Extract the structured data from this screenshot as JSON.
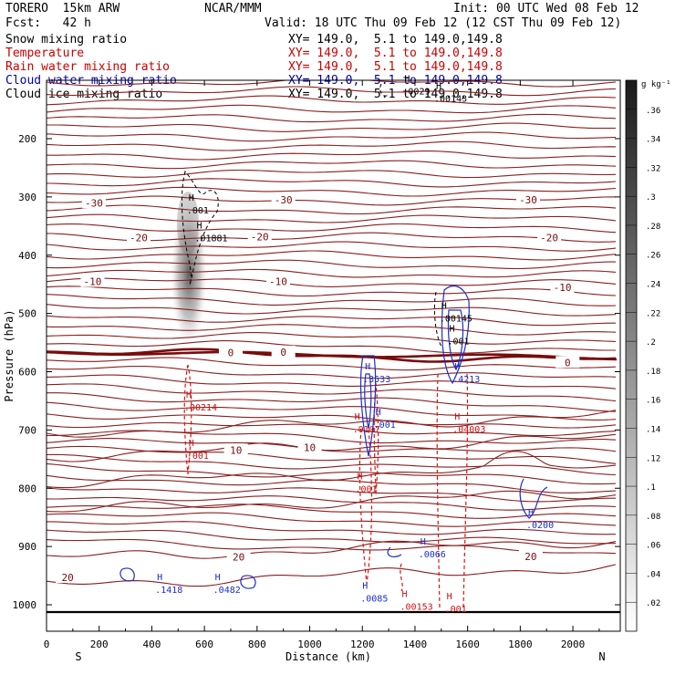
{
  "header": {
    "model": "TORERO  15km ARW",
    "org": "NCAR/MMM",
    "init": "Init: 00 UTC Wed 08 Feb 12",
    "fcst": "Fcst:   42 h",
    "valid": "Valid: 18 UTC Thu 09 Feb 12 (12 CST Thu 09 Feb 12)"
  },
  "fields": [
    {
      "label": "Snow mixing ratio",
      "xy": "XY= 149.0,  5.1 to 149.0,149.8",
      "color": "#000000"
    },
    {
      "label": "Temperature",
      "xy": "XY= 149.0,  5.1 to 149.0,149.8",
      "color": "#cc0000"
    },
    {
      "label": "Rain water mixing ratio",
      "xy": "XY= 149.0,  5.1 to 149.0,149.8",
      "color": "#cc0000"
    },
    {
      "label": "Cloud water mixing ratio",
      "xy": "XY= 149.0,  5.1 to 149.0,149.8",
      "color": "#0000aa"
    },
    {
      "label": "Cloud ice mixing ratio",
      "xy": "XY= 149.0,  5.1 to 149.0,149.8",
      "color": "#000000"
    }
  ],
  "chart_data": {
    "type": "contour",
    "xlabel": "Distance (km)",
    "ylabel": "Pressure (hPa)",
    "xlim": [
      0,
      2180
    ],
    "ylim": [
      1040,
      100
    ],
    "xticks": [
      0,
      200,
      400,
      600,
      800,
      1000,
      1200,
      1400,
      1600,
      1800,
      2000
    ],
    "yticks": [
      200,
      300,
      400,
      500,
      600,
      700,
      800,
      900,
      1000
    ],
    "end_labels": {
      "left": "S",
      "right": "N"
    },
    "colorbar": {
      "units": "g kg⁻¹",
      "ticks": [
        ".02",
        ".04",
        ".06",
        ".08",
        ".1",
        ".12",
        ".14",
        ".16",
        ".18",
        ".2",
        ".22",
        ".24",
        ".26",
        ".28",
        ".3",
        ".32",
        ".34",
        ".36"
      ]
    },
    "temperature_labels": [
      {
        "text": "-30",
        "x": 180,
        "p": 310
      },
      {
        "text": "-30",
        "x": 900,
        "p": 305
      },
      {
        "text": "-30",
        "x": 1830,
        "p": 305
      },
      {
        "text": "-20",
        "x": 350,
        "p": 370
      },
      {
        "text": "-20",
        "x": 810,
        "p": 368
      },
      {
        "text": "-20",
        "x": 1910,
        "p": 370
      },
      {
        "text": "-10",
        "x": 175,
        "p": 445
      },
      {
        "text": "-10",
        "x": 880,
        "p": 445
      },
      {
        "text": "-10",
        "x": 1960,
        "p": 455
      },
      {
        "text": "0",
        "x": 700,
        "p": 567
      },
      {
        "text": "0",
        "x": 900,
        "p": 566
      },
      {
        "text": "0",
        "x": 1980,
        "p": 584
      },
      {
        "text": "10",
        "x": 720,
        "p": 735
      },
      {
        "text": "10",
        "x": 1000,
        "p": 730
      },
      {
        "text": "20",
        "x": 80,
        "p": 953
      },
      {
        "text": "20",
        "x": 730,
        "p": 918
      },
      {
        "text": "20",
        "x": 1840,
        "p": 917
      }
    ],
    "maxima": [
      {
        "field": "snow",
        "text": ".001",
        "x": 540,
        "p": 322
      },
      {
        "field": "snow",
        "text": ".01881",
        "x": 570,
        "p": 370
      },
      {
        "field": "ice",
        "text": ".0029",
        "x": 1360,
        "p": 118
      },
      {
        "field": "ice",
        "text": ".00143",
        "x": 1480,
        "p": 130
      },
      {
        "field": "ice",
        "text": ".00145",
        "x": 1500,
        "p": 508
      },
      {
        "field": "ice",
        "text": ".001",
        "x": 1530,
        "p": 547
      },
      {
        "field": "rain",
        "text": ".00214",
        "x": 530,
        "p": 660
      },
      {
        "field": "rain",
        "text": ".001",
        "x": 540,
        "p": 743
      },
      {
        "field": "rain",
        "text": ".0107",
        "x": 1170,
        "p": 698
      },
      {
        "field": "rain",
        "text": ".04003",
        "x": 1550,
        "p": 698
      },
      {
        "field": "rain",
        "text": ".001",
        "x": 1180,
        "p": 800
      },
      {
        "field": "rain",
        "text": ".00153",
        "x": 1350,
        "p": 1002
      },
      {
        "field": "rain",
        "text": ".001",
        "x": 1520,
        "p": 1006
      },
      {
        "field": "cloud",
        "text": ".3533",
        "x": 1210,
        "p": 612
      },
      {
        "field": "cloud",
        "text": ".001",
        "x": 1250,
        "p": 690
      },
      {
        "field": "cloud",
        "text": ".4213",
        "x": 1550,
        "p": 612
      },
      {
        "field": "cloud",
        "text": ".0200",
        "x": 1830,
        "p": 862
      },
      {
        "field": "cloud",
        "text": ".0066",
        "x": 1420,
        "p": 912
      },
      {
        "field": "cloud",
        "text": ".1418",
        "x": 420,
        "p": 973
      },
      {
        "field": "cloud",
        "text": ".0482",
        "x": 640,
        "p": 973
      },
      {
        "field": "cloud",
        "text": ".0085",
        "x": 1200,
        "p": 988
      }
    ]
  }
}
